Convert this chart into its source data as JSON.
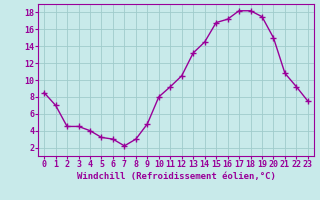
{
  "hours": [
    0,
    1,
    2,
    3,
    4,
    5,
    6,
    7,
    8,
    9,
    10,
    11,
    12,
    13,
    14,
    15,
    16,
    17,
    18,
    19,
    20,
    21,
    22,
    23
  ],
  "values": [
    8.5,
    7.0,
    4.5,
    4.5,
    4.0,
    3.2,
    3.0,
    2.2,
    3.0,
    4.8,
    8.0,
    9.2,
    10.5,
    13.2,
    14.5,
    16.8,
    17.2,
    18.2,
    18.2,
    17.5,
    15.0,
    10.8,
    9.2,
    7.5
  ],
  "line_color": "#990099",
  "marker": "+",
  "markersize": 4,
  "linewidth": 1.0,
  "bg_color": "#c8eaea",
  "grid_color": "#a0cccc",
  "xlabel": "Windchill (Refroidissement éolien,°C)",
  "xlabel_color": "#990099",
  "xlabel_fontsize": 6.5,
  "tick_color": "#990099",
  "tick_fontsize": 6,
  "ylim": [
    1,
    19
  ],
  "yticks": [
    2,
    4,
    6,
    8,
    10,
    12,
    14,
    16,
    18
  ],
  "xlim": [
    -0.5,
    23.5
  ],
  "xticks": [
    0,
    1,
    2,
    3,
    4,
    5,
    6,
    7,
    8,
    9,
    10,
    11,
    12,
    13,
    14,
    15,
    16,
    17,
    18,
    19,
    20,
    21,
    22,
    23
  ]
}
